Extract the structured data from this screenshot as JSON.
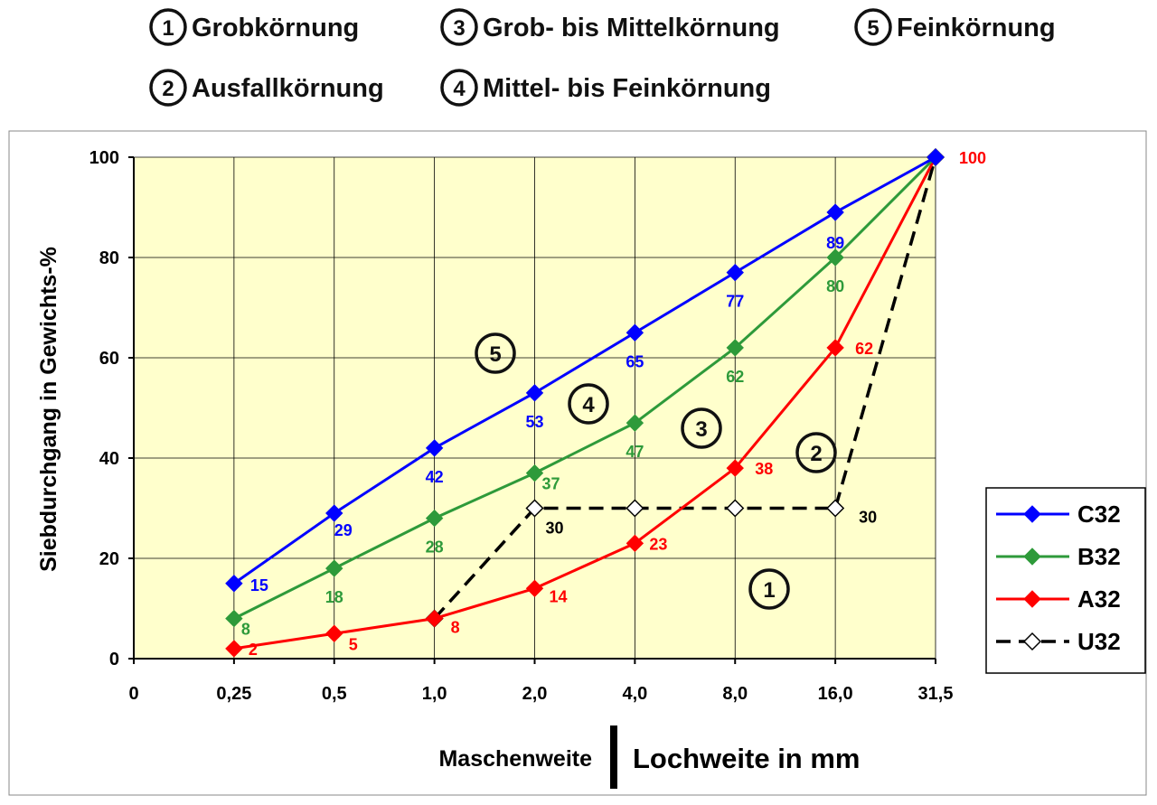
{
  "zones": [
    {
      "num": "1",
      "label": "Grobkörnung"
    },
    {
      "num": "2",
      "label": "Ausfallkörnung"
    },
    {
      "num": "3",
      "label": "Grob- bis Mittelkörnung"
    },
    {
      "num": "4",
      "label": "Mittel- bis Feinkörnung"
    },
    {
      "num": "5",
      "label": "Feinkörnung"
    }
  ],
  "chart_data": {
    "type": "line",
    "categories": [
      "0",
      "0,25",
      "0,5",
      "1,0",
      "2,0",
      "4,0",
      "8,0",
      "16,0",
      "31,5"
    ],
    "ylabel": "Siebdurchgang in Gewichts-%",
    "xlabel_left": "Maschenweite",
    "xlabel_right": "Lochweite  in  mm",
    "ylim": [
      0,
      100
    ],
    "yticks": [
      "0",
      "20",
      "40",
      "60",
      "80",
      "100"
    ],
    "grid": true,
    "legend_position": "right",
    "series": [
      {
        "name": "C32",
        "color": "#0000ff",
        "dashed": false,
        "hollow": false,
        "points": [
          [
            1,
            15
          ],
          [
            2,
            29
          ],
          [
            3,
            42
          ],
          [
            4,
            53
          ],
          [
            5,
            65
          ],
          [
            6,
            77
          ],
          [
            7,
            89
          ],
          [
            8,
            100
          ]
        ],
        "labels": [
          "15",
          "29",
          "42",
          "53",
          "65",
          "77",
          "89",
          ""
        ]
      },
      {
        "name": "B32",
        "color": "#2e9a3a",
        "dashed": false,
        "hollow": false,
        "points": [
          [
            1,
            8
          ],
          [
            2,
            18
          ],
          [
            3,
            28
          ],
          [
            4,
            37
          ],
          [
            5,
            47
          ],
          [
            6,
            62
          ],
          [
            7,
            80
          ],
          [
            8,
            100
          ]
        ],
        "labels": [
          "8",
          "18",
          "28",
          "37",
          "47",
          "62",
          "80",
          ""
        ]
      },
      {
        "name": "A32",
        "color": "#ff0000",
        "dashed": false,
        "hollow": false,
        "points": [
          [
            1,
            2
          ],
          [
            2,
            5
          ],
          [
            3,
            8
          ],
          [
            4,
            14
          ],
          [
            5,
            23
          ],
          [
            6,
            38
          ],
          [
            7,
            62
          ],
          [
            8,
            100
          ]
        ],
        "labels": [
          "2",
          "5",
          "8",
          "14",
          "23",
          "38",
          "62",
          "100"
        ]
      },
      {
        "name": "U32",
        "color": "#000000",
        "dashed": true,
        "hollow": true,
        "points": [
          [
            3,
            8
          ],
          [
            4,
            30
          ],
          [
            5,
            30
          ],
          [
            6,
            30
          ],
          [
            7,
            30
          ],
          [
            8,
            100
          ]
        ],
        "labels": [
          "",
          "30",
          "",
          "",
          "30",
          ""
        ]
      }
    ],
    "zone_markers": [
      "5",
      "4",
      "3",
      "2",
      "1"
    ]
  }
}
